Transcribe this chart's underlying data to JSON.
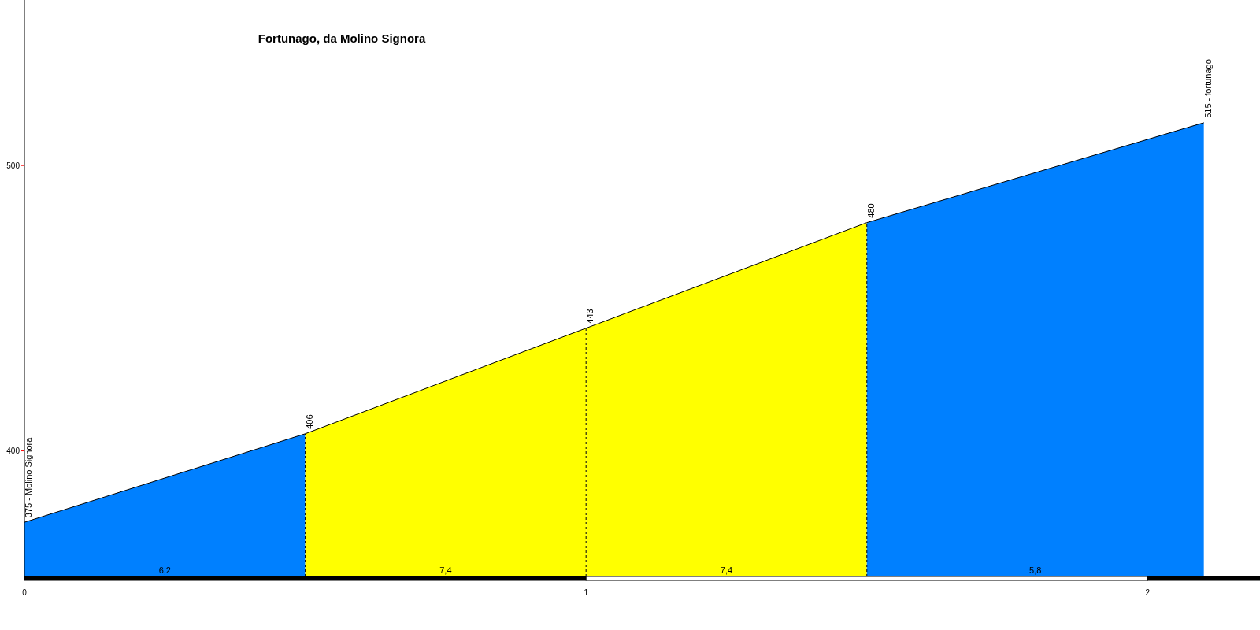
{
  "chart_data": {
    "type": "area",
    "title": "Fortunago, da Molino Signora",
    "series": [
      {
        "color": "#0080ff",
        "x": [
          0,
          0.5
        ],
        "values": [
          375,
          406
        ]
      },
      {
        "color": "#ffff00",
        "x": [
          0.5,
          1
        ],
        "values": [
          406,
          443
        ]
      },
      {
        "color": "#ffff00",
        "x": [
          1,
          1.5
        ],
        "values": [
          443,
          480
        ]
      },
      {
        "color": "#0080ff",
        "x": [
          1.5,
          2.1
        ],
        "values": [
          480,
          515
        ]
      }
    ],
    "xlim": [
      0,
      2.2
    ],
    "xticks": [
      0,
      1,
      2
    ],
    "ylim": [
      356,
      558
    ],
    "yticks": [
      400,
      500
    ],
    "grid": false,
    "annotations": [
      {
        "text": "375 - Molino Signora",
        "x": 0,
        "y": 375
      },
      {
        "text": "406",
        "x": 0.5,
        "y": 406
      },
      {
        "text": "443",
        "x": 1,
        "y": 443
      },
      {
        "text": "480",
        "x": 1.5,
        "y": 480
      },
      {
        "text": "515 - fortunago",
        "x": 2.1,
        "y": 515
      },
      {
        "text": "6,2",
        "x": 0.25,
        "y": 356
      },
      {
        "text": "7,4",
        "x": 0.75,
        "y": 356
      },
      {
        "text": "7,4",
        "x": 1.25,
        "y": 356
      },
      {
        "text": "5,8",
        "x": 1.8,
        "y": 356
      }
    ]
  }
}
